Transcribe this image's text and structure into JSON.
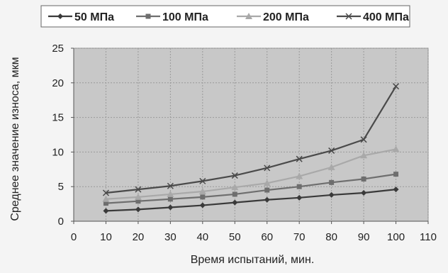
{
  "chart_data": {
    "type": "line",
    "xlabel": "Время испытаний, мин.",
    "ylabel": "Среднее значение износа, мкм",
    "xlim": [
      0,
      110
    ],
    "ylim": [
      0,
      25
    ],
    "xticks": [
      0,
      10,
      20,
      30,
      40,
      50,
      60,
      70,
      80,
      90,
      100,
      110
    ],
    "yticks": [
      0,
      5,
      10,
      15,
      20,
      25
    ],
    "grid": true,
    "legend_position": "top",
    "plot_background": "#c8c8c8",
    "x": [
      10,
      20,
      30,
      40,
      50,
      60,
      70,
      80,
      90,
      100
    ],
    "series": [
      {
        "name": "50 МПа",
        "marker": "diamond",
        "color": "#3a3a3a",
        "values": [
          1.5,
          1.7,
          2.0,
          2.3,
          2.7,
          3.1,
          3.4,
          3.8,
          4.1,
          4.6
        ]
      },
      {
        "name": "100 МПа",
        "marker": "square",
        "color": "#6e6e6e",
        "values": [
          2.6,
          2.9,
          3.2,
          3.5,
          3.9,
          4.5,
          5.0,
          5.6,
          6.1,
          6.8
        ]
      },
      {
        "name": "200 МПа",
        "marker": "triangle",
        "color": "#a9a9a9",
        "values": [
          3.2,
          3.5,
          3.9,
          4.3,
          4.9,
          5.5,
          6.5,
          7.8,
          9.5,
          10.4
        ]
      },
      {
        "name": "400 МПа",
        "marker": "cross",
        "color": "#4a4a4a",
        "values": [
          4.1,
          4.6,
          5.1,
          5.8,
          6.6,
          7.7,
          9.0,
          10.2,
          11.8,
          19.5
        ]
      }
    ]
  }
}
